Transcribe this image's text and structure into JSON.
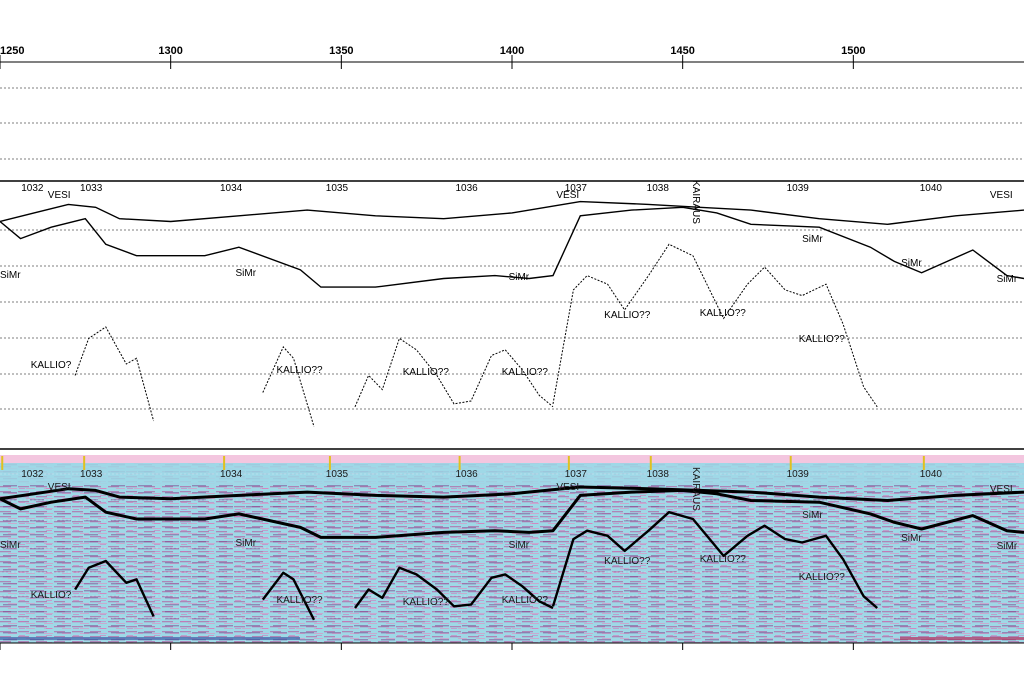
{
  "chart_data": {
    "type": "line",
    "title": "",
    "xlabel": "",
    "ylabel": "",
    "xlim": [
      1250,
      1550
    ],
    "x_ticks": [
      1250,
      1300,
      1350,
      1400,
      1450,
      1500
    ],
    "x_tick_labels": [
      "1250",
      "1300",
      "1350",
      "1400",
      "1450",
      "1500"
    ],
    "grid": "horizontal dashed",
    "shot_points": [
      {
        "label": "1032",
        "x": 1253
      },
      {
        "label": "1033",
        "x": 1277
      },
      {
        "label": "1034",
        "x": 1318
      },
      {
        "label": "1035",
        "x": 1349
      },
      {
        "label": "1036",
        "x": 1387
      },
      {
        "label": "1037",
        "x": 1419
      },
      {
        "label": "1038",
        "x": 1443
      },
      {
        "label": "1039",
        "x": 1484
      },
      {
        "label": "1040",
        "x": 1523
      }
    ],
    "annotations": [
      {
        "text": "VESI",
        "x": 1264
      },
      {
        "text": "VESI",
        "x": 1413
      },
      {
        "text": "VESI",
        "x": 1540
      },
      {
        "text": "KAIRAUS",
        "x": 1453
      },
      {
        "text": "SiMr",
        "x": 1250
      },
      {
        "text": "SiMr",
        "x": 1319
      },
      {
        "text": "SiMr",
        "x": 1399
      },
      {
        "text": "SiMr",
        "x": 1485
      },
      {
        "text": "SiMr",
        "x": 1514
      },
      {
        "text": "SiMr",
        "x": 1548
      },
      {
        "text": "KALLIO?",
        "x": 1259
      },
      {
        "text": "KALLIO??",
        "x": 1331
      },
      {
        "text": "KALLIO??",
        "x": 1368
      },
      {
        "text": "KALLIO??",
        "x": 1397
      },
      {
        "text": "KALLIO??",
        "x": 1427
      },
      {
        "text": "KALLIO??",
        "x": 1455
      },
      {
        "text": "KALLIO??",
        "x": 1484
      }
    ],
    "series": [
      {
        "x": [
          1250,
          1260,
          1270,
          1278,
          1285,
          1300,
          1320,
          1340,
          1360,
          1380,
          1400,
          1420,
          1440,
          1455,
          1470,
          1490,
          1510,
          1530,
          1550
        ],
        "y": [
          1.0,
          0.7,
          0.4,
          0.5,
          0.9,
          1.0,
          0.8,
          0.6,
          0.8,
          0.9,
          0.7,
          0.3,
          0.4,
          0.5,
          0.6,
          0.9,
          1.1,
          0.8,
          0.6
        ]
      },
      {
        "x": [
          1250,
          1256,
          1265,
          1275,
          1281,
          1290,
          1310,
          1320,
          1338,
          1344,
          1360,
          1380,
          1395,
          1405,
          1412,
          1420,
          1435,
          1450,
          1460,
          1470,
          1490,
          1505,
          1512,
          1520,
          1535,
          1545,
          1550
        ],
        "y": [
          1.0,
          1.6,
          1.2,
          0.9,
          1.8,
          2.2,
          2.2,
          1.9,
          2.7,
          3.3,
          3.3,
          3.0,
          2.9,
          3.0,
          2.9,
          0.8,
          0.6,
          0.5,
          0.7,
          1.1,
          1.2,
          1.9,
          2.4,
          2.8,
          2.0,
          2.9,
          3.0
        ]
      },
      {
        "x": [
          1272,
          1276,
          1281,
          1287,
          1290,
          1295
        ],
        "y": [
          6.4,
          5.1,
          4.7,
          6.0,
          5.8,
          8.0
        ]
      },
      {
        "x": [
          1327,
          1333,
          1336,
          1342
        ],
        "y": [
          7.0,
          5.4,
          5.8,
          8.2
        ]
      },
      {
        "x": [
          1354,
          1358,
          1362,
          1367,
          1372,
          1378,
          1383,
          1388,
          1394,
          1398,
          1403,
          1408,
          1412
        ],
        "y": [
          7.5,
          6.4,
          6.9,
          5.1,
          5.5,
          6.4,
          7.4,
          7.3,
          5.7,
          5.5,
          6.2,
          7.1,
          7.5
        ]
      },
      {
        "x": [
          1412,
          1418,
          1422,
          1428,
          1433,
          1440,
          1446,
          1453,
          1462,
          1469,
          1474,
          1480,
          1485,
          1492,
          1497,
          1503,
          1507
        ],
        "y": [
          7.4,
          3.4,
          2.9,
          3.2,
          4.1,
          2.9,
          1.8,
          2.2,
          4.4,
          3.2,
          2.6,
          3.4,
          3.6,
          3.2,
          4.6,
          6.8,
          7.5
        ]
      }
    ]
  }
}
